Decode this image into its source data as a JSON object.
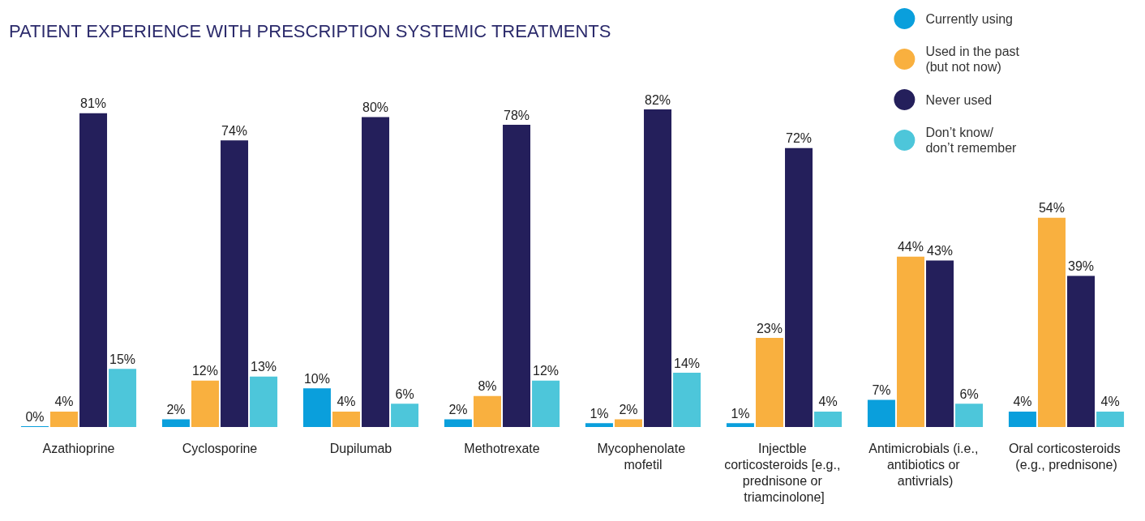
{
  "chart_data": {
    "type": "bar",
    "title": "PATIENT EXPERIENCE WITH PRESCRIPTION SYSTEMIC TREATMENTS",
    "categories": [
      "Azathioprine",
      "Cyclosporine",
      "Dupilumab",
      "Methotrexate",
      "Mycophenolate mofetil",
      "Injectble corticosteroids [e.g., prednisone or triamcinolone]",
      "Antimicrobials (i.e., antibiotics or antivrials)",
      "Oral corticosteroids (e.g., prednisone)"
    ],
    "series": [
      {
        "name": "Currently using",
        "color": "#0a9fdc",
        "values": [
          0,
          2,
          10,
          2,
          1,
          1,
          7,
          4
        ],
        "value_labels": [
          "0%",
          "2%",
          "10%",
          "2%",
          "1%",
          "1%",
          "7%",
          "4%"
        ]
      },
      {
        "name": "Used in the past (but not now)",
        "color": "#f9b03f",
        "values": [
          4,
          12,
          4,
          8,
          2,
          23,
          44,
          54
        ],
        "value_labels": [
          "4%",
          "12%",
          "4%",
          "8%",
          "2%",
          "23%",
          "44%",
          "54%"
        ]
      },
      {
        "name": "Never used",
        "color": "#241f5b",
        "values": [
          81,
          74,
          80,
          78,
          82,
          72,
          43,
          39
        ],
        "value_labels": [
          "81%",
          "74%",
          "80%",
          "78%",
          "82%",
          "72%",
          "43%",
          "39%"
        ]
      },
      {
        "name": "Don’t know/ don’t remember",
        "color": "#4dc6da",
        "values": [
          15,
          13,
          6,
          12,
          14,
          4,
          6,
          4
        ],
        "value_labels": [
          "15%",
          "13%",
          "6%",
          "12%",
          "14%",
          "4%",
          "6%",
          "4%"
        ]
      }
    ],
    "legend": "top right",
    "grid": false
  }
}
